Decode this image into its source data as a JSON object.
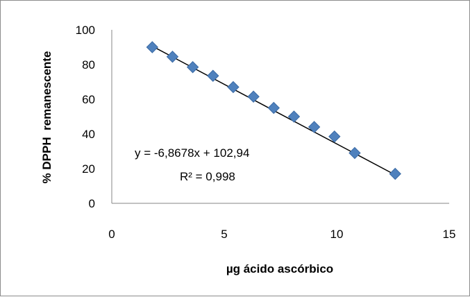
{
  "chart_data": {
    "type": "scatter",
    "xlabel": "µg ácido ascórbico",
    "ylabel": "% DPPH  remanescente",
    "xlim": [
      0,
      15
    ],
    "ylim": [
      0,
      100
    ],
    "x_ticks": [
      "0",
      "5",
      "10",
      "15"
    ],
    "y_ticks": [
      "0",
      "20",
      "40",
      "60",
      "80",
      "100"
    ],
    "grid": false,
    "marker_color": "#4f81bd",
    "trendline_color": "#000000",
    "series": [
      {
        "x": [
          1.8,
          2.7,
          3.6,
          4.5,
          5.4,
          6.3,
          7.2,
          8.1,
          9.0,
          9.9,
          10.8,
          12.6
        ],
        "y": [
          90,
          84.5,
          78.5,
          73.5,
          67,
          61.5,
          55,
          50,
          44,
          38.5,
          29,
          17
        ]
      }
    ],
    "trendline": {
      "slope": -6.8678,
      "intercept": 102.94,
      "x_range": [
        1.8,
        12.6
      ]
    },
    "annotations": {
      "equation": "y = -6,8678x + 102,94",
      "r_squared": "R² = 0,998"
    }
  }
}
